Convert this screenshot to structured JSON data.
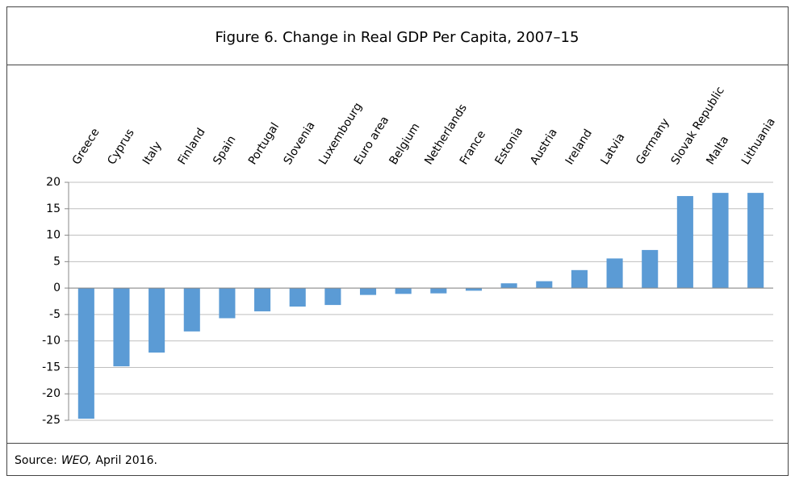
{
  "chart_data": {
    "type": "bar",
    "title": "Figure 6. Change in Real GDP Per Capita, 2007–15",
    "categories": [
      "Greece",
      "Cyprus",
      "Italy",
      "Finland",
      "Spain",
      "Portugal",
      "Slovenia",
      "Luxembourg",
      "Euro area",
      "Belgium",
      "Netherlands",
      "France",
      "Estonia",
      "Austria",
      "Ireland",
      "Latvia",
      "Germany",
      "Slovak Republic",
      "Malta",
      "Lithuania"
    ],
    "values": [
      -24.7,
      -14.8,
      -12.2,
      -8.2,
      -5.7,
      -4.4,
      -3.5,
      -3.2,
      -1.3,
      -1.1,
      -1.0,
      -0.5,
      0.9,
      1.3,
      3.4,
      5.6,
      7.2,
      17.4,
      18.0,
      18.0
    ],
    "color": "#5b9bd5",
    "ylim": [
      -25,
      20
    ],
    "yticks": [
      -25,
      -20,
      -15,
      -10,
      -5,
      0,
      5,
      10,
      15,
      20
    ],
    "grid": true,
    "source": [
      "Source:",
      "WEO,",
      "April 2016."
    ]
  }
}
